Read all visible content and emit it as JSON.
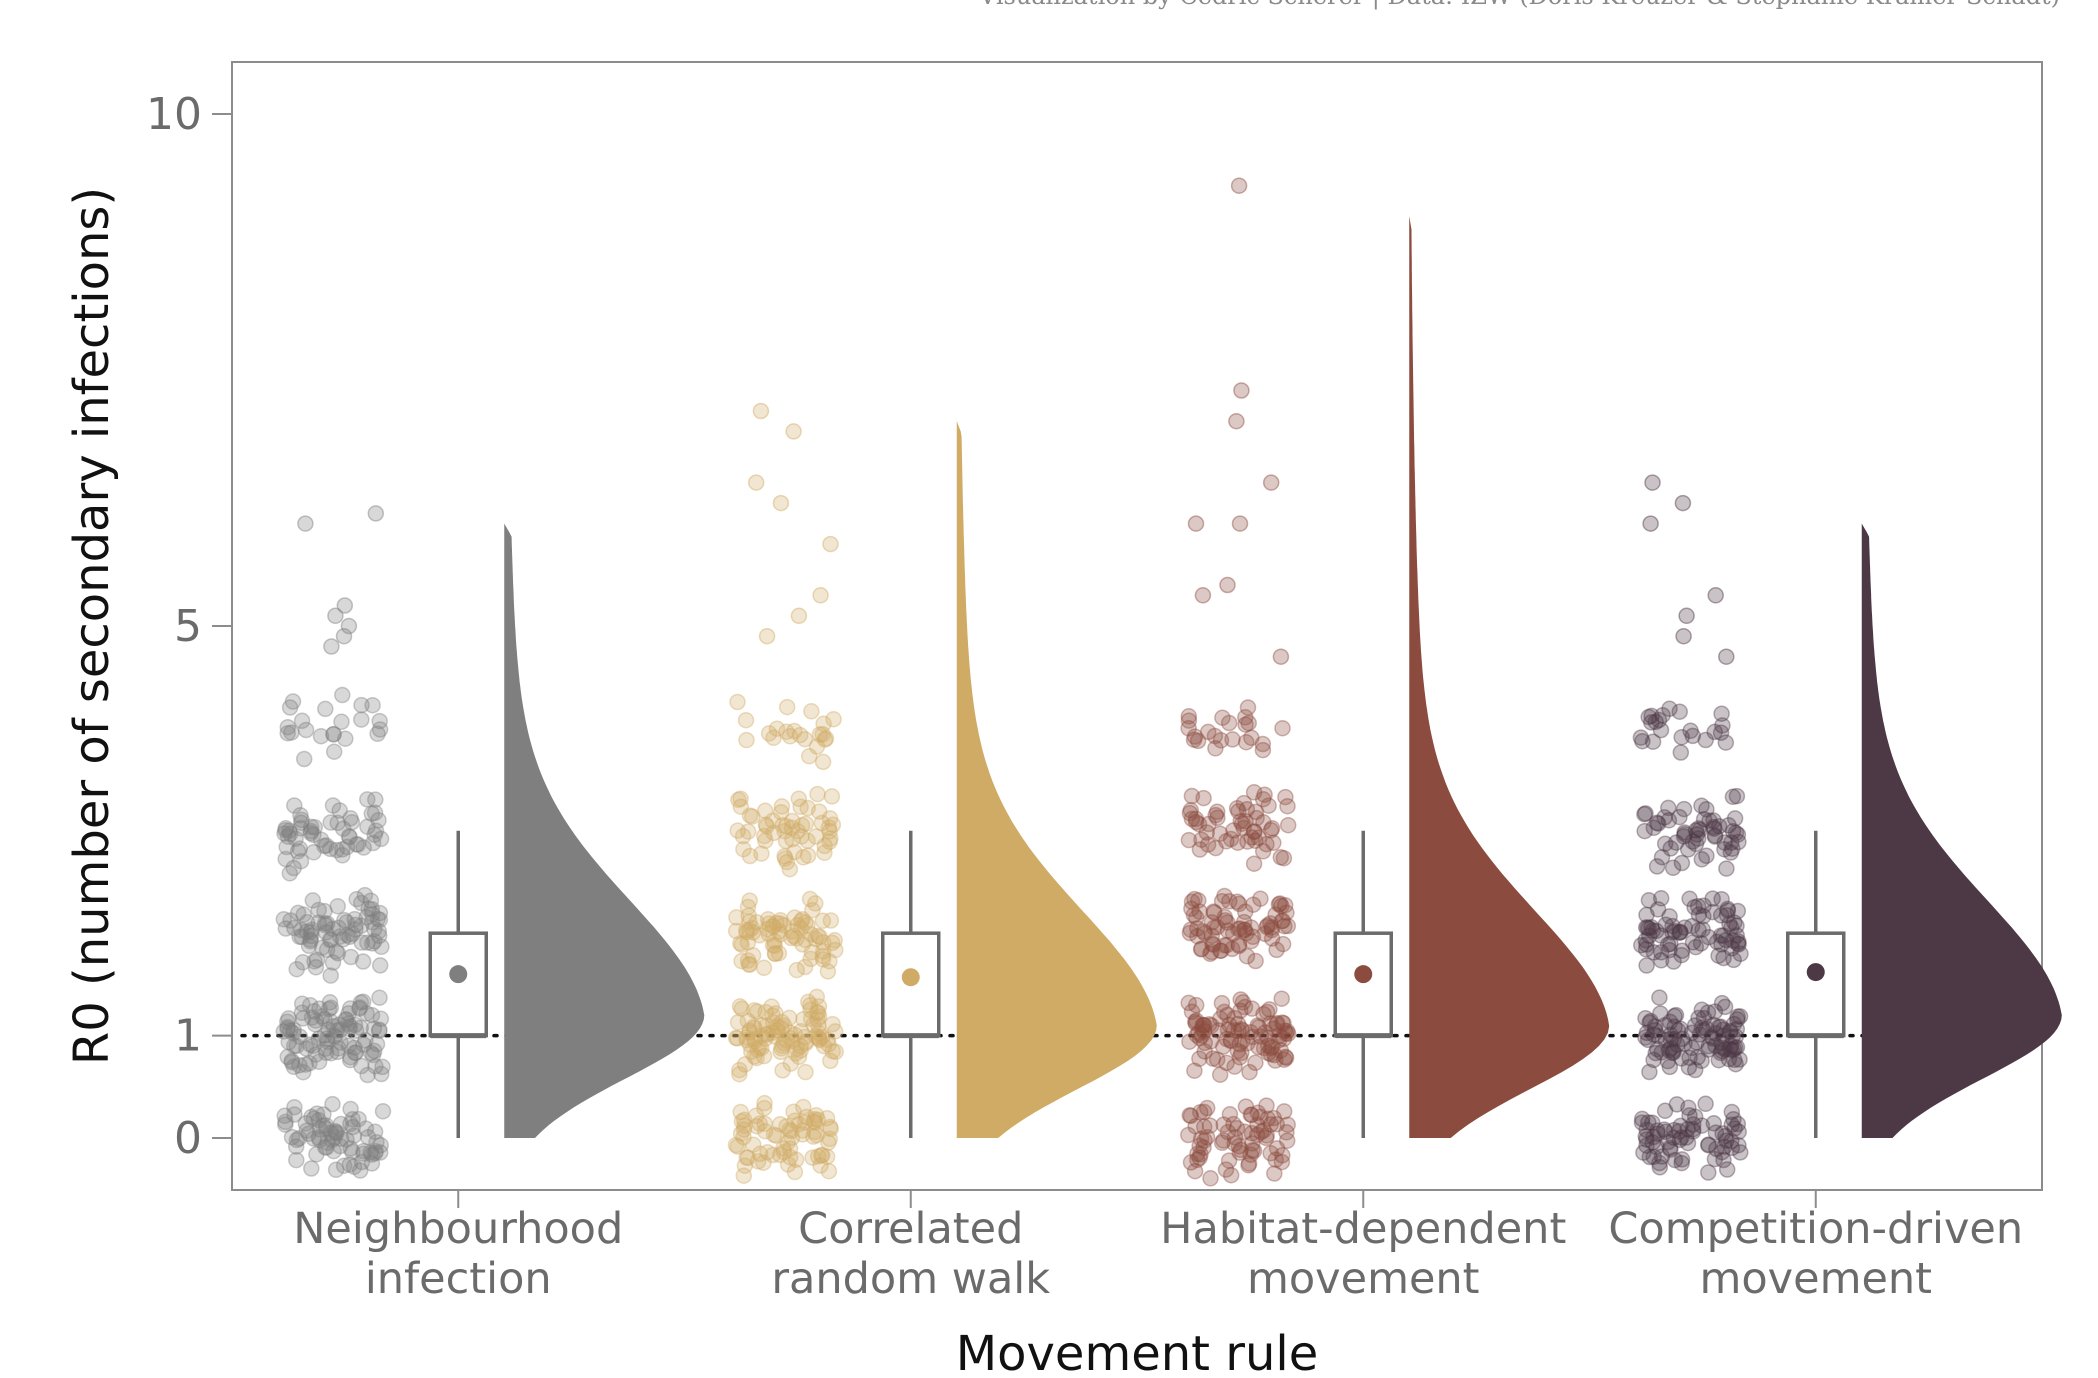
{
  "caption": "Visualization by Cédric Scherer | Data: IZW (Doris Kreuzer & Stephanie Kramer-Schadt)",
  "chart_data": {
    "type": "raincloud",
    "title": "",
    "xlabel": "Movement rule",
    "ylabel": "R0 (number of secondary infections)",
    "ylim": [
      -0.45,
      10.5
    ],
    "yticks": [
      0,
      1,
      5,
      10
    ],
    "reference_line": {
      "y": 1,
      "style": "dotted"
    },
    "grid": false,
    "legend": "none",
    "categories": [
      {
        "label_line1": "Neighbourhood",
        "label_line2": "infection",
        "color": "#7f7f7f",
        "box": {
          "lower_whisker": 0,
          "q1": 1,
          "median": 1,
          "q3": 2,
          "upper_whisker": 3,
          "mean": 1.6
        },
        "density_max": 6.0,
        "density_peak_y": 1.2,
        "outliers": [
          6.1,
          6.0,
          5.2,
          5.1,
          5.0,
          4.9,
          4.8
        ]
      },
      {
        "label_line1": "Correlated",
        "label_line2": "random walk",
        "color": "#d0ab66",
        "box": {
          "lower_whisker": 0,
          "q1": 1,
          "median": 1,
          "q3": 2,
          "upper_whisker": 3,
          "mean": 1.57
        },
        "density_max": 7.0,
        "density_peak_y": 1.1,
        "outliers": [
          7.1,
          6.9,
          6.4,
          6.2,
          5.8,
          5.3,
          5.1,
          4.9
        ]
      },
      {
        "label_line1": "Habitat-dependent",
        "label_line2": "movement",
        "color": "#8b4b3f",
        "box": {
          "lower_whisker": 0,
          "q1": 1,
          "median": 1,
          "q3": 2,
          "upper_whisker": 3,
          "mean": 1.6
        },
        "density_max": 9.0,
        "density_peak_y": 1.1,
        "outliers": [
          9.3,
          7.3,
          7.0,
          6.4,
          6.0,
          6.0,
          5.4,
          5.3,
          4.7
        ]
      },
      {
        "label_line1": "Competition-driven",
        "label_line2": "movement",
        "color": "#4d3845",
        "box": {
          "lower_whisker": 0,
          "q1": 1,
          "median": 1,
          "q3": 2,
          "upper_whisker": 3,
          "mean": 1.62
        },
        "density_max": 6.0,
        "density_peak_y": 1.2,
        "outliers": [
          6.4,
          6.2,
          6.0,
          5.3,
          5.1,
          4.9,
          4.7
        ]
      }
    ]
  }
}
